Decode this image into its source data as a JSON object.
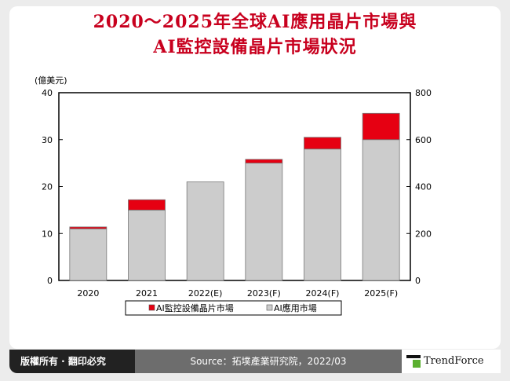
{
  "title_line1": "2020～2025年全球AI應用晶片市場與",
  "title_line2": "AI監控設備晶片市場狀況",
  "chart_data": {
    "type": "bar",
    "stacked": true,
    "categories": [
      "2020",
      "2021",
      "2022(E)",
      "2023(F)",
      "2024(F)",
      "2025(F)"
    ],
    "series": [
      {
        "name": "AI應用市場",
        "values": [
          11.0,
          15.0,
          21.0,
          25.0,
          28.0,
          30.0
        ],
        "color": "#cccccc"
      },
      {
        "name": "AI監控設備晶片市場",
        "values": [
          0.4,
          2.2,
          0,
          0.8,
          2.5,
          5.6
        ],
        "color": "#e60012"
      }
    ],
    "ylabel": "(億美元)",
    "ylim": [
      0,
      40
    ],
    "yticks": [
      0,
      10,
      20,
      30,
      40
    ],
    "y2lim": [
      0,
      800
    ],
    "y2ticks": [
      0,
      200,
      400,
      600,
      800
    ],
    "grid": false,
    "legend_position": "bottom",
    "legend": [
      "AI監控設備晶片市場",
      "AI應用市場"
    ]
  },
  "footer": {
    "copyright": "版權所有 · 翻印必究",
    "source": "Source：拓墣產業研究院，2022/03",
    "brand": "TrendForce"
  }
}
